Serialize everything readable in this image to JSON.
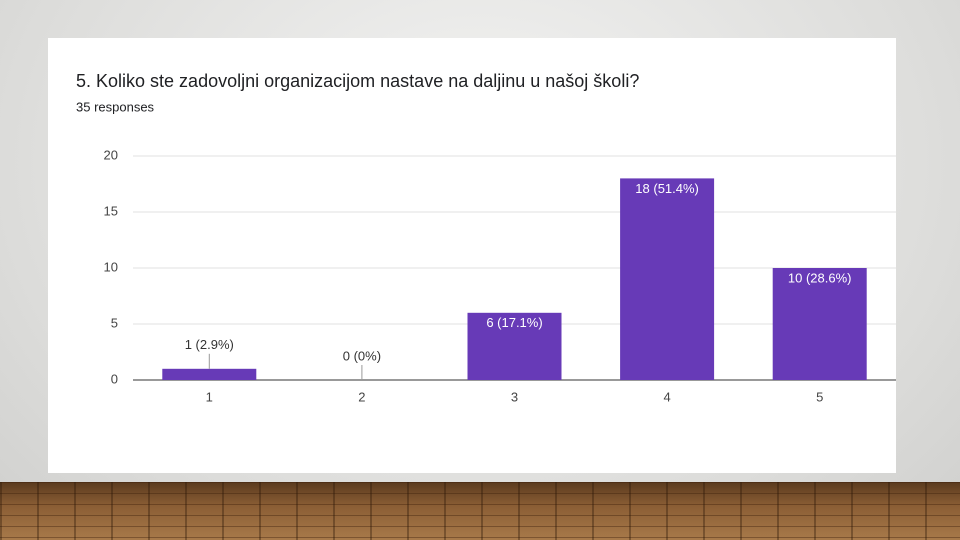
{
  "chart_data": {
    "type": "bar",
    "title": "5. Koliko ste zadovoljni organizacijom nastave na daljinu u našoj školi?",
    "subtitle": "35 responses",
    "categories": [
      "1",
      "2",
      "3",
      "4",
      "5"
    ],
    "values": [
      1,
      0,
      6,
      18,
      10
    ],
    "value_labels": [
      "1 (2.9%)",
      "0 (0%)",
      "6 (17.1%)",
      "18 (51.4%)",
      "10 (28.6%)"
    ],
    "color": "#673ab7",
    "ylim": [
      0,
      20
    ],
    "yticks": [
      0,
      5,
      10,
      15,
      20
    ],
    "grid": true
  }
}
